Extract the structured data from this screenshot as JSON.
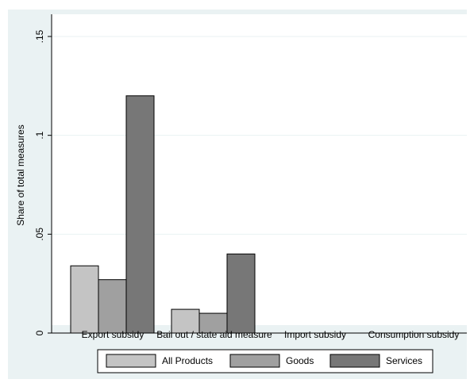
{
  "chart_data": {
    "type": "bar",
    "title": "",
    "xlabel": "",
    "ylabel": "Share of total measures",
    "ylim": [
      0,
      0.15
    ],
    "yticks": [
      {
        "value": 0,
        "label": "0"
      },
      {
        "value": 0.05,
        "label": ".05"
      },
      {
        "value": 0.1,
        "label": ".1"
      },
      {
        "value": 0.15,
        "label": ".15"
      }
    ],
    "categories": [
      "Export subsidy",
      "Bail out / state aid measure",
      "Import subsidy",
      "Consumption subsidy"
    ],
    "series": [
      {
        "name": "All Products",
        "color": "#c4c4c4",
        "values": [
          0.034,
          0.012,
          0,
          0
        ]
      },
      {
        "name": "Goods",
        "color": "#a0a0a0",
        "values": [
          0.027,
          0.01,
          0,
          0
        ]
      },
      {
        "name": "Services",
        "color": "#777777",
        "values": [
          0.12,
          0.04,
          0,
          0
        ]
      }
    ],
    "grid": true,
    "legend_position": "bottom"
  }
}
